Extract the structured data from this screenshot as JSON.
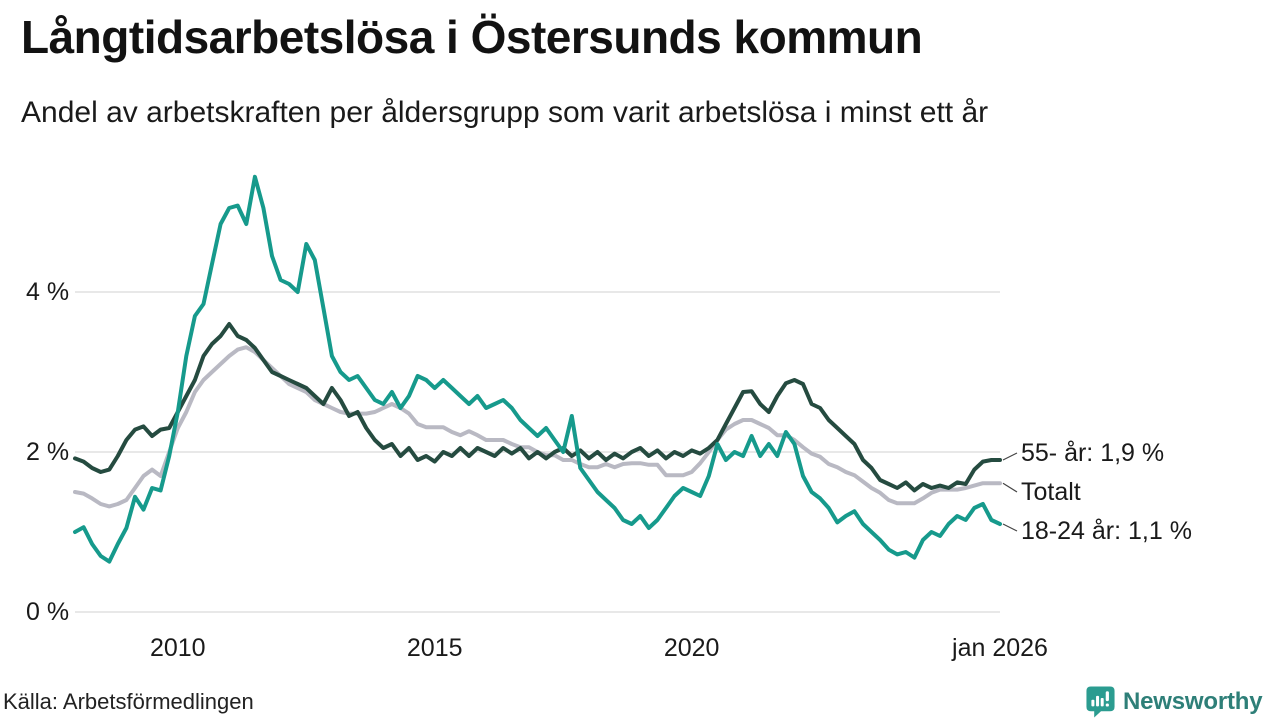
{
  "header": {
    "title": "Långtidsarbetslösa i Östersunds kommun",
    "subtitle": "Andel av arbetskraften per åldersgrupp som varit arbetslösa i minst ett år"
  },
  "chart_data": {
    "type": "line",
    "title": "Långtidsarbetslösa i Östersunds kommun",
    "subtitle": "Andel av arbetskraften per åldersgrupp som varit arbetslösa i minst ett år",
    "unit": "% av arbetskraften",
    "x_start_year": 2008,
    "x_end_year": 2026,
    "points_per_year": 6,
    "grid": "horizontal",
    "legend_position": "right-end-labels",
    "ylim": [
      0,
      5.6
    ],
    "y_axis": {
      "ticks": [
        {
          "label": "0 %",
          "value": 0
        },
        {
          "label": "2 %",
          "value": 2
        },
        {
          "label": "4 %",
          "value": 4
        }
      ]
    },
    "x_axis": {
      "ticks": [
        {
          "label": "2010",
          "year": 2010
        },
        {
          "label": "2015",
          "year": 2015
        },
        {
          "label": "2020",
          "year": 2020
        },
        {
          "label": "jan 2026",
          "year": 2026
        }
      ]
    },
    "series": [
      {
        "name": "Totalt",
        "end_label": "Totalt",
        "end_value_text": "Totalt",
        "color": "#b9b9c3",
        "values": [
          1.5,
          1.48,
          1.42,
          1.35,
          1.32,
          1.35,
          1.4,
          1.55,
          1.7,
          1.78,
          1.7,
          2.0,
          2.3,
          2.5,
          2.75,
          2.9,
          3.0,
          3.1,
          3.2,
          3.28,
          3.31,
          3.25,
          3.15,
          3.05,
          2.95,
          2.85,
          2.8,
          2.75,
          2.65,
          2.6,
          2.55,
          2.5,
          2.48,
          2.48,
          2.48,
          2.5,
          2.55,
          2.6,
          2.55,
          2.48,
          2.35,
          2.31,
          2.31,
          2.31,
          2.25,
          2.21,
          2.26,
          2.21,
          2.15,
          2.15,
          2.15,
          2.1,
          2.06,
          2.06,
          2.0,
          1.96,
          1.96,
          1.9,
          1.9,
          1.85,
          1.81,
          1.81,
          1.85,
          1.81,
          1.85,
          1.86,
          1.86,
          1.84,
          1.84,
          1.71,
          1.71,
          1.71,
          1.75,
          1.86,
          2.0,
          2.15,
          2.28,
          2.35,
          2.4,
          2.4,
          2.35,
          2.3,
          2.21,
          2.21,
          2.15,
          2.06,
          1.98,
          1.94,
          1.85,
          1.81,
          1.75,
          1.71,
          1.63,
          1.55,
          1.49,
          1.4,
          1.36,
          1.36,
          1.36,
          1.42,
          1.49,
          1.53,
          1.53,
          1.53,
          1.55,
          1.58,
          1.61,
          1.61,
          1.61
        ]
      },
      {
        "name": "55- år",
        "end_label": "55- år: 1,9 %",
        "end_value_text": "1,9 %",
        "color": "#254b40",
        "values": [
          1.92,
          1.88,
          1.8,
          1.75,
          1.78,
          1.95,
          2.15,
          2.28,
          2.32,
          2.2,
          2.28,
          2.3,
          2.5,
          2.7,
          2.9,
          3.2,
          3.35,
          3.45,
          3.6,
          3.45,
          3.4,
          3.3,
          3.15,
          3.0,
          2.95,
          2.9,
          2.85,
          2.8,
          2.7,
          2.6,
          2.8,
          2.65,
          2.45,
          2.5,
          2.3,
          2.15,
          2.05,
          2.1,
          1.95,
          2.05,
          1.9,
          1.95,
          1.88,
          2.0,
          1.95,
          2.05,
          1.95,
          2.05,
          2.0,
          1.95,
          2.05,
          1.98,
          2.05,
          1.92,
          2.0,
          1.92,
          2.0,
          2.05,
          1.95,
          2.02,
          1.92,
          2.0,
          1.9,
          1.98,
          1.92,
          2.0,
          2.05,
          1.95,
          2.02,
          1.92,
          2.0,
          1.95,
          2.02,
          1.98,
          2.05,
          2.15,
          2.35,
          2.55,
          2.75,
          2.76,
          2.6,
          2.5,
          2.7,
          2.86,
          2.9,
          2.85,
          2.6,
          2.55,
          2.4,
          2.3,
          2.2,
          2.1,
          1.9,
          1.8,
          1.65,
          1.6,
          1.55,
          1.62,
          1.52,
          1.6,
          1.55,
          1.58,
          1.55,
          1.62,
          1.6,
          1.78,
          1.88,
          1.9,
          1.9
        ]
      },
      {
        "name": "18-24 år",
        "end_label": "18-24 år: 1,1 %",
        "end_value_text": "1,1 %",
        "color": "#169a8c",
        "values": [
          1.0,
          1.06,
          0.85,
          0.7,
          0.63,
          0.85,
          1.05,
          1.44,
          1.28,
          1.55,
          1.52,
          1.95,
          2.5,
          3.2,
          3.7,
          3.85,
          4.35,
          4.85,
          5.05,
          5.08,
          4.85,
          5.44,
          5.05,
          4.45,
          4.15,
          4.1,
          4.0,
          4.6,
          4.4,
          3.8,
          3.2,
          3.0,
          2.9,
          2.95,
          2.8,
          2.65,
          2.6,
          2.75,
          2.55,
          2.7,
          2.95,
          2.9,
          2.8,
          2.9,
          2.8,
          2.7,
          2.6,
          2.7,
          2.55,
          2.6,
          2.65,
          2.55,
          2.4,
          2.3,
          2.2,
          2.3,
          2.15,
          2.0,
          2.45,
          1.8,
          1.65,
          1.5,
          1.4,
          1.3,
          1.15,
          1.1,
          1.2,
          1.05,
          1.15,
          1.3,
          1.45,
          1.55,
          1.5,
          1.45,
          1.7,
          2.1,
          1.9,
          2.0,
          1.95,
          2.2,
          1.95,
          2.1,
          1.95,
          2.25,
          2.1,
          1.7,
          1.5,
          1.42,
          1.3,
          1.12,
          1.2,
          1.26,
          1.1,
          1.0,
          0.9,
          0.78,
          0.72,
          0.75,
          0.68,
          0.9,
          1.0,
          0.95,
          1.1,
          1.2,
          1.15,
          1.3,
          1.35,
          1.15,
          1.1
        ]
      }
    ],
    "colors": {
      "grid": "#e1e1e1",
      "connector": "#444444",
      "series_total": "#b9b9c3",
      "series_55plus": "#254b40",
      "series_18_24": "#169a8c"
    }
  },
  "footer": {
    "source": "Källa: Arbetsförmedlingen",
    "brand": "Newsworthy"
  }
}
